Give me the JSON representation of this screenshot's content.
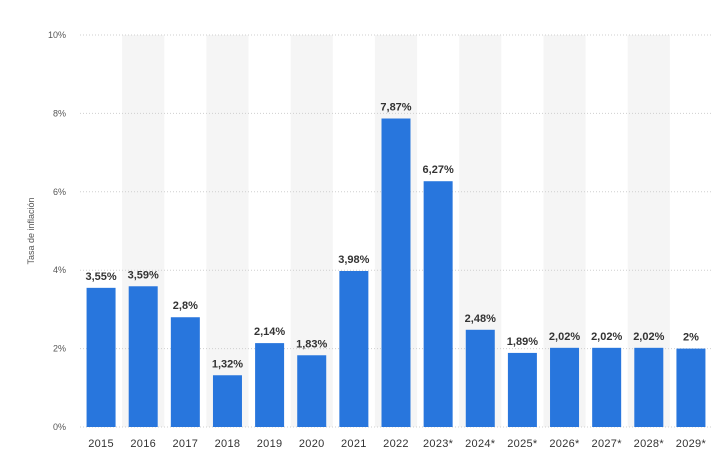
{
  "chart_data": {
    "type": "bar",
    "ylabel": "Tasa de inflación",
    "categories": [
      "2015",
      "2016",
      "2017",
      "2018",
      "2019",
      "2020",
      "2021",
      "2022",
      "2023*",
      "2024*",
      "2025*",
      "2026*",
      "2027*",
      "2028*",
      "2029*"
    ],
    "values": [
      3.55,
      3.59,
      2.8,
      1.32,
      2.14,
      1.83,
      3.98,
      7.87,
      6.27,
      2.48,
      1.89,
      2.02,
      2.02,
      2.02,
      2.0
    ],
    "value_labels": [
      "3,55%",
      "3,59%",
      "2,8%",
      "1,32%",
      "2,14%",
      "1,83%",
      "3,98%",
      "7,87%",
      "6,27%",
      "2,48%",
      "1,89%",
      "2,02%",
      "2,02%",
      "2,02%",
      "2%"
    ],
    "ylim": [
      0,
      10
    ],
    "yticks": [
      0,
      2,
      4,
      6,
      8,
      10
    ],
    "ytick_labels": [
      "0%",
      "2%",
      "4%",
      "6%",
      "8%",
      "10%"
    ],
    "grid": true,
    "bar_color": "#2876dd",
    "band_color": "#f5f5f5",
    "grid_color": "#cfcfcf"
  }
}
